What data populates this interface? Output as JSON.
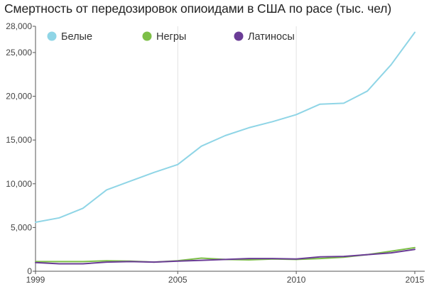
{
  "chart_data": {
    "type": "line",
    "title": "Смертность от передозировок опиоидами в США по расе (тыс. чел)",
    "xlabel": "",
    "ylabel": "",
    "x": [
      1999,
      2000,
      2001,
      2002,
      2003,
      2004,
      2005,
      2006,
      2007,
      2008,
      2009,
      2010,
      2011,
      2012,
      2013,
      2014,
      2015
    ],
    "xlim": [
      1999,
      2015
    ],
    "ylim": [
      0,
      28000
    ],
    "x_ticks": [
      1999,
      2005,
      2010,
      2015
    ],
    "y_ticks": [
      0,
      5000,
      10000,
      15000,
      20000,
      25000,
      28000
    ],
    "y_tick_labels": [
      "0",
      "5,000",
      "10,000",
      "15,000",
      "20,000",
      "25,000",
      "28,000"
    ],
    "grid": {
      "vertical": true,
      "horizontal": false
    },
    "legend": "top-left",
    "series": [
      {
        "name": "Белые",
        "color": "#8fd5e6",
        "values": [
          5600,
          6100,
          7200,
          9300,
          10300,
          11300,
          12200,
          14300,
          15500,
          16400,
          17100,
          17900,
          19100,
          19200,
          20600,
          23600,
          27300
        ]
      },
      {
        "name": "Негры",
        "color": "#7dbf47",
        "values": [
          1100,
          1100,
          1100,
          1200,
          1150,
          1050,
          1200,
          1500,
          1350,
          1300,
          1400,
          1350,
          1450,
          1600,
          1900,
          2300,
          2700
        ]
      },
      {
        "name": "Латиносы",
        "color": "#6a3c96",
        "values": [
          1000,
          850,
          850,
          1050,
          1100,
          1050,
          1150,
          1250,
          1350,
          1450,
          1450,
          1400,
          1650,
          1700,
          1900,
          2100,
          2500
        ]
      }
    ]
  }
}
